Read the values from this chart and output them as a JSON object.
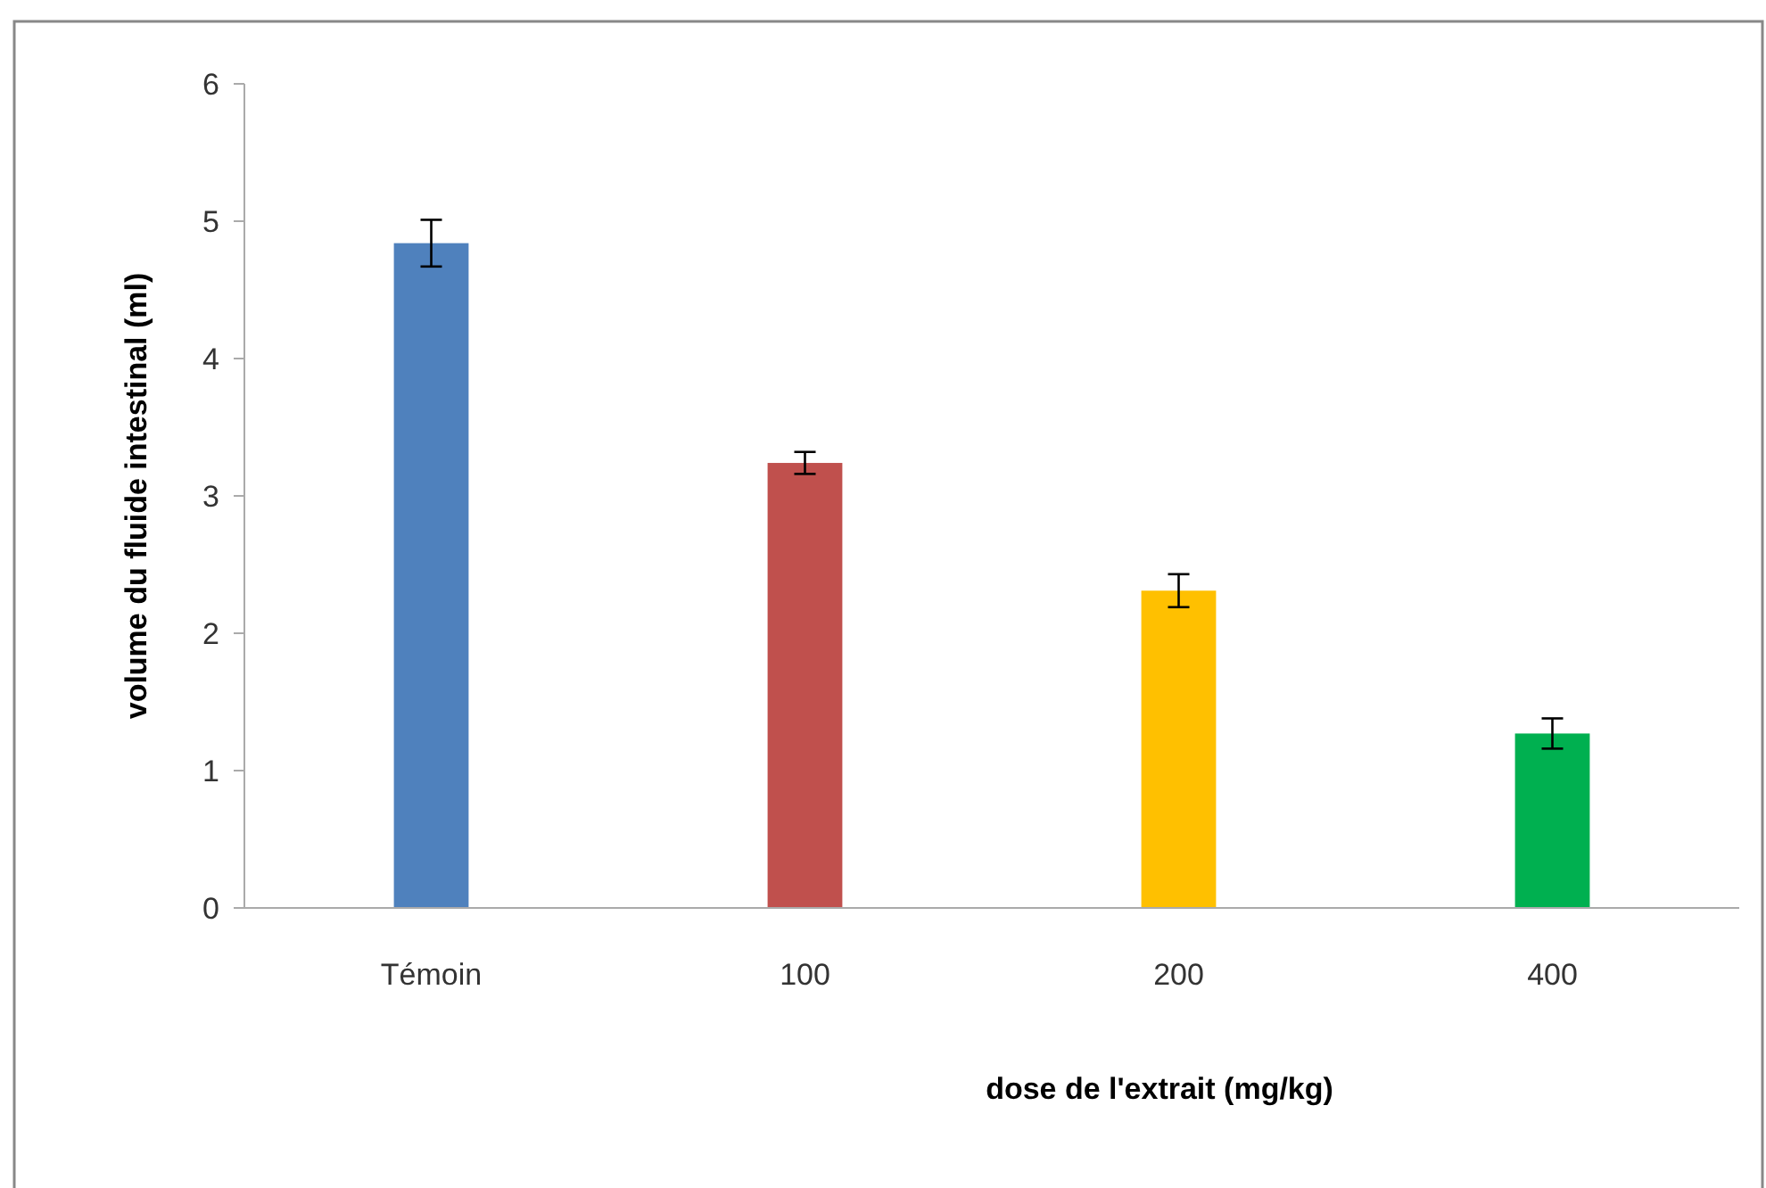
{
  "chart_data": {
    "type": "bar",
    "xlabel": "dose de l'extrait  (mg/kg)",
    "ylabel": "volume du fluide intestinal (ml)",
    "categories": [
      "Témoin",
      "100",
      "200",
      "400"
    ],
    "values": [
      4.84,
      3.24,
      2.31,
      1.27
    ],
    "colors": [
      "#4f81bd",
      "#c0504d",
      "#ffc000",
      "#00b050"
    ],
    "errors": [
      0.17,
      0.08,
      0.12,
      0.11
    ],
    "ylim": [
      0,
      6
    ],
    "yticks": [
      0,
      1,
      2,
      3,
      4,
      5,
      6
    ],
    "grid": false
  }
}
